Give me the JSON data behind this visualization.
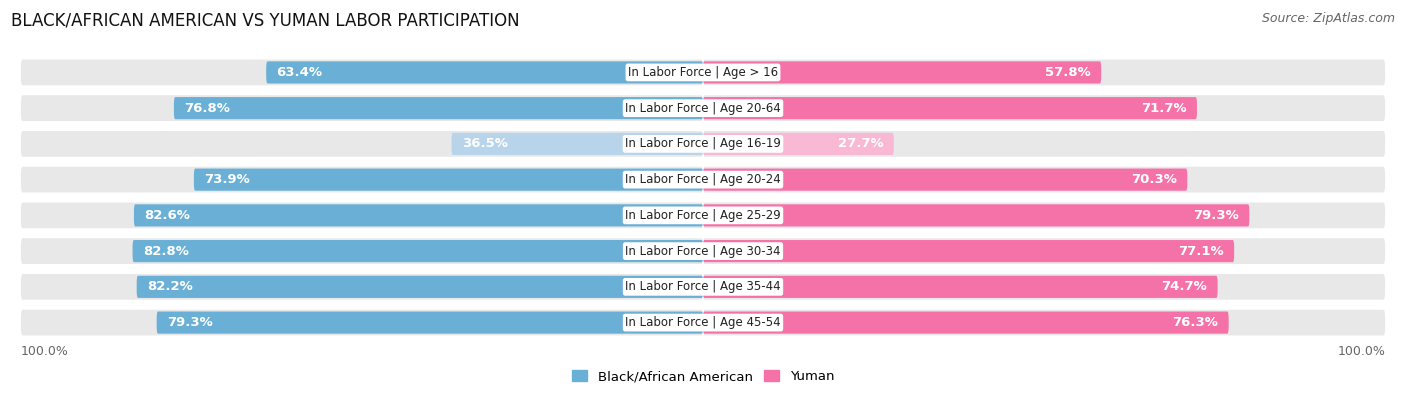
{
  "title": "BLACK/AFRICAN AMERICAN VS YUMAN LABOR PARTICIPATION",
  "source": "Source: ZipAtlas.com",
  "categories": [
    "In Labor Force | Age > 16",
    "In Labor Force | Age 20-64",
    "In Labor Force | Age 16-19",
    "In Labor Force | Age 20-24",
    "In Labor Force | Age 25-29",
    "In Labor Force | Age 30-34",
    "In Labor Force | Age 35-44",
    "In Labor Force | Age 45-54"
  ],
  "black_values": [
    63.4,
    76.8,
    36.5,
    73.9,
    82.6,
    82.8,
    82.2,
    79.3
  ],
  "yuman_values": [
    57.8,
    71.7,
    27.7,
    70.3,
    79.3,
    77.1,
    74.7,
    76.3
  ],
  "black_color_full": "#6aafd6",
  "black_color_light": "#b8d4ea",
  "yuman_color_full": "#f472a8",
  "yuman_color_light": "#f9b8d4",
  "row_bg_color": "#e8e8e8",
  "bg_color": "#ffffff",
  "title_fontsize": 12,
  "source_fontsize": 9,
  "bar_label_fontsize": 9.5,
  "category_fontsize": 8.5,
  "legend_fontsize": 9.5,
  "axis_label_fontsize": 9
}
